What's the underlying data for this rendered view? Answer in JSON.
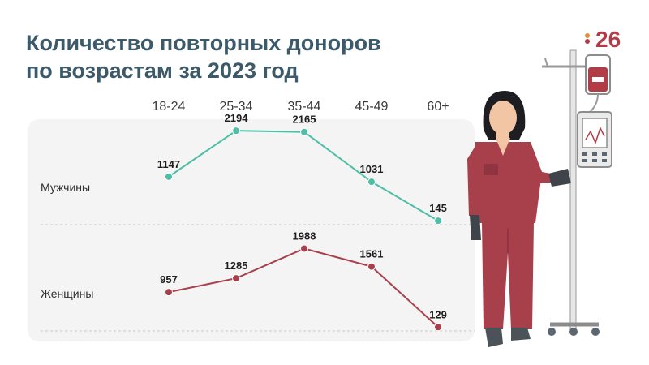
{
  "title_line1": "Количество повторных доноров",
  "title_line2": "по возрастам за 2023 год",
  "logo_text": "26",
  "chart_data": {
    "type": "line",
    "categories": [
      "18-24",
      "25-34",
      "35-44",
      "45-49",
      "60+"
    ],
    "series": [
      {
        "name": "Мужчины",
        "values": [
          1147,
          2194,
          2165,
          1031,
          145
        ],
        "color": "#4cbfa6"
      },
      {
        "name": "Женщины",
        "values": [
          957,
          1285,
          1988,
          1561,
          129
        ],
        "color": "#a8404c"
      }
    ],
    "grid": "dashed-separators",
    "background": "#f4f4f4"
  }
}
